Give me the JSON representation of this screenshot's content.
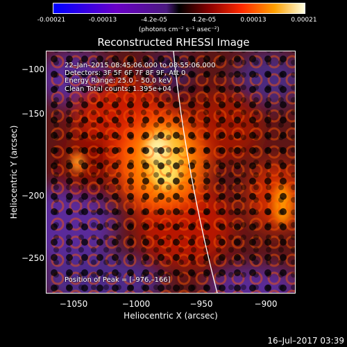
{
  "colorbar": {
    "ticks": [
      "-0.00021",
      "-0.00013",
      "-4.2e-05",
      "4.2e-05",
      "0.00013",
      "0.00021"
    ],
    "units": "(photons cm⁻² s⁻¹ asec⁻²)"
  },
  "title": "Reconstructed RHESSI Image",
  "axes": {
    "xlabel": "Heliocentric X (arcsec)",
    "ylabel": "Heliocentric Y (arcsec)",
    "xticks": [
      "−1050",
      "−1000",
      "−950",
      "−900"
    ],
    "yticks": [
      "−100",
      "−150",
      "−200",
      "−250"
    ]
  },
  "info": {
    "line1": "22–Jan–2015 08:45:06.000 to 08:55:06.000",
    "line2": "Detectors: 3F 5F 6F 7F 8F 9F, Att 0",
    "line3": "Energy Range: 25.0 – 50.0 keV",
    "line4": "Clean     Total counts: 1.395e+04",
    "peak": "Position of Peak = [–976,–166]"
  },
  "footer": {
    "timestamp": "16–Jul–2017 03:39"
  }
}
